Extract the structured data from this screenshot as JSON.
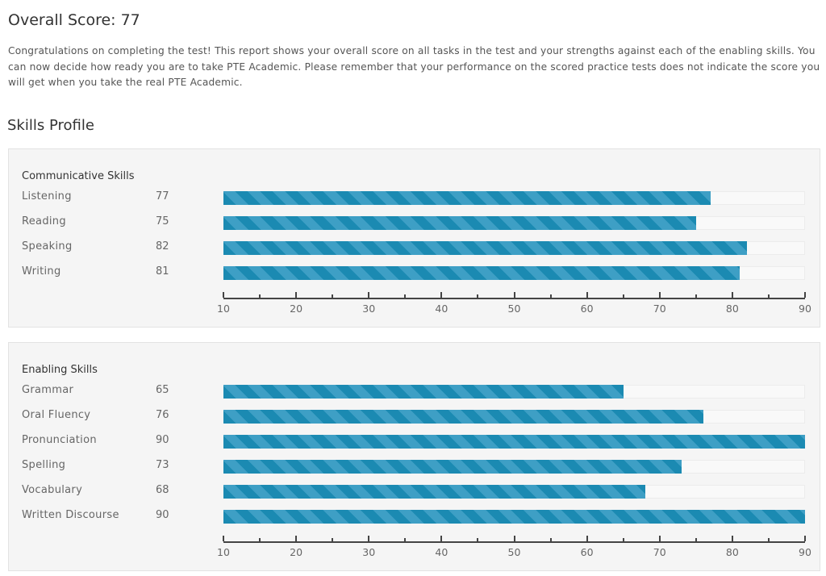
{
  "header": {
    "title": "Overall Score: 77",
    "intro": "Congratulations on completing the test! This report shows your overall score on all tasks in the test and your strengths against each of the enabling skills. You can now decide how ready you are to take PTE Academic. Please remember that your performance on the scored practice tests does not indicate the score you will get when you take the real PTE Academic."
  },
  "section_title": "Skills Profile",
  "chart_data": [
    {
      "type": "bar",
      "orientation": "horizontal",
      "title": "Communicative Skills",
      "categories": [
        "Listening",
        "Reading",
        "Speaking",
        "Writing"
      ],
      "values": [
        77,
        75,
        82,
        81
      ],
      "xlim": [
        10,
        90
      ],
      "ticks": [
        "10",
        "20",
        "30",
        "40",
        "50",
        "60",
        "70",
        "80",
        "90"
      ],
      "minor_tick_step": 5
    },
    {
      "type": "bar",
      "orientation": "horizontal",
      "title": "Enabling Skills",
      "categories": [
        "Grammar",
        "Oral Fluency",
        "Pronunciation",
        "Spelling",
        "Vocabulary",
        "Written Discourse"
      ],
      "values": [
        65,
        76,
        90,
        73,
        68,
        90
      ],
      "xlim": [
        10,
        90
      ],
      "ticks": [
        "10",
        "20",
        "30",
        "40",
        "50",
        "60",
        "70",
        "80",
        "90"
      ],
      "minor_tick_step": 5
    }
  ],
  "colors": {
    "bar_dark": "#1b8ab2",
    "bar_light": "#3e9fc5"
  }
}
